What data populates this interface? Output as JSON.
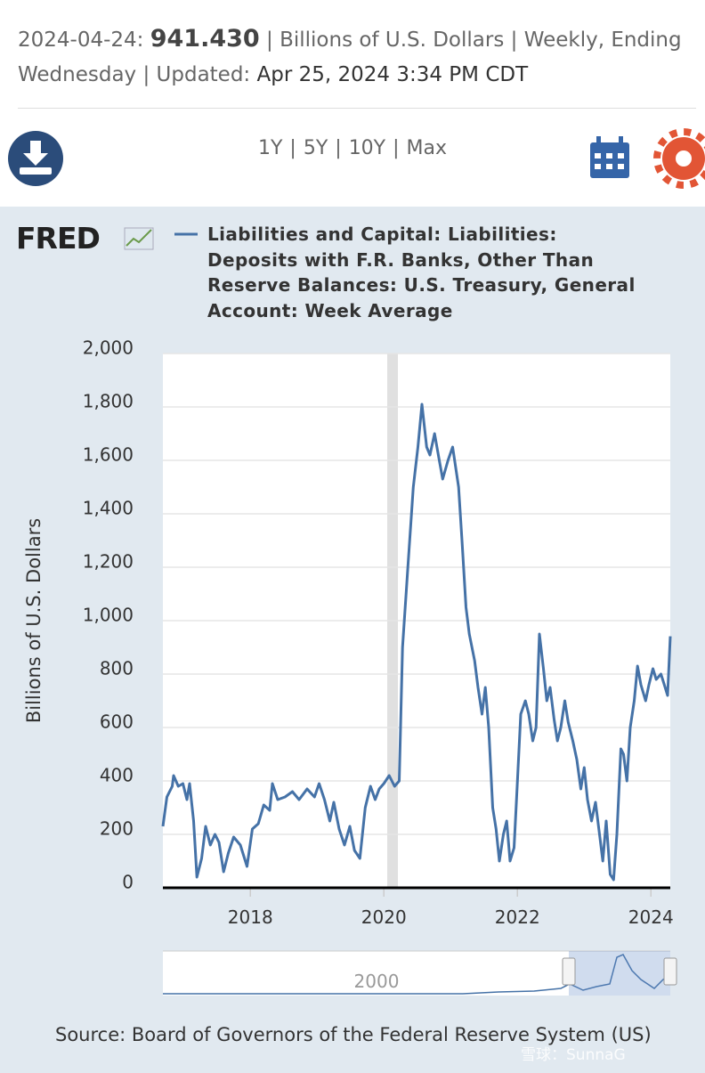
{
  "header": {
    "date": "2024-04-24:",
    "value": "941.430",
    "meta": "| Billions of U.S. Dollars | Weekly, Ending Wednesday | Updated:",
    "updated": "Apr 25, 2024 3:34 PM CDT"
  },
  "ranges": [
    "1Y",
    "5Y",
    "10Y",
    "Max"
  ],
  "logo": "FRED",
  "source": "Source: Board of Governors of the Federal Reserve System (US)",
  "navigator_label": "2000",
  "watermark": "雪球：SunnaG",
  "chart_data": {
    "type": "line",
    "ylabel": "Billions of U.S. Dollars",
    "xlim": [
      2016.69,
      2024.29
    ],
    "xticks": [
      2018,
      2020,
      2022,
      2024
    ],
    "ylim": [
      0,
      2000
    ],
    "yticks": [
      0,
      200,
      400,
      600,
      800,
      {
        "value": 1000,
        "label": "1,000"
      },
      {
        "value": 1200,
        "label": "1,200"
      },
      {
        "value": 1400,
        "label": "1,400"
      },
      {
        "value": 1600,
        "label": "1,600"
      },
      {
        "value": 1800,
        "label": "1,800"
      },
      {
        "value": 2000,
        "label": "2,000"
      }
    ],
    "grid": true,
    "recessions": [
      [
        2020.05,
        2020.21
      ]
    ],
    "x": [
      2016.69,
      2016.75,
      2016.83,
      2016.85,
      2016.92,
      2016.99,
      2017.05,
      2017.09,
      2017.15,
      2017.2,
      2017.27,
      2017.33,
      2017.4,
      2017.47,
      2017.53,
      2017.6,
      2017.67,
      2017.75,
      2017.85,
      2017.95,
      2018.03,
      2018.12,
      2018.2,
      2018.29,
      2018.33,
      2018.41,
      2018.52,
      2018.63,
      2018.73,
      2018.85,
      2018.96,
      2019.03,
      2019.11,
      2019.19,
      2019.25,
      2019.33,
      2019.41,
      2019.49,
      2019.56,
      2019.64,
      2019.72,
      2019.8,
      2019.87,
      2019.93,
      2020.0,
      2020.08,
      2020.16,
      2020.23,
      2020.28,
      2020.36,
      2020.44,
      2020.51,
      2020.57,
      2020.64,
      2020.69,
      2020.76,
      2020.83,
      2020.88,
      2020.96,
      2021.03,
      2021.12,
      2021.17,
      2021.23,
      2021.28,
      2021.36,
      2021.41,
      2021.47,
      2021.52,
      2021.57,
      2021.63,
      2021.68,
      2021.73,
      2021.79,
      2021.84,
      2021.89,
      2021.95,
      2022.0,
      2022.05,
      2022.12,
      2022.17,
      2022.23,
      2022.28,
      2022.33,
      2022.39,
      2022.44,
      2022.49,
      2022.55,
      2022.6,
      2022.65,
      2022.71,
      2022.76,
      2022.83,
      2022.89,
      2022.95,
      2023.0,
      2023.05,
      2023.11,
      2023.17,
      2023.23,
      2023.28,
      2023.33,
      2023.39,
      2023.44,
      2023.49,
      2023.55,
      2023.59,
      2023.64,
      2023.69,
      2023.75,
      2023.8,
      2023.85,
      2023.92,
      2023.97,
      2024.03,
      2024.08,
      2024.15,
      2024.2,
      2024.25,
      2024.29
    ],
    "series": [
      {
        "name": "Liabilities and Capital: Liabilities: Deposits with F.R. Banks, Other Than Reserve Balances: U.S. Treasury, General Account: Week Average",
        "color": "#4572a7",
        "values": [
          230,
          340,
          380,
          420,
          380,
          390,
          330,
          390,
          250,
          40,
          110,
          230,
          160,
          200,
          170,
          60,
          130,
          190,
          160,
          80,
          220,
          240,
          310,
          290,
          390,
          330,
          340,
          360,
          330,
          370,
          340,
          390,
          330,
          250,
          320,
          220,
          160,
          230,
          140,
          110,
          300,
          380,
          330,
          370,
          390,
          420,
          380,
          400,
          900,
          1200,
          1500,
          1650,
          1810,
          1650,
          1620,
          1700,
          1600,
          1530,
          1600,
          1650,
          1500,
          1300,
          1050,
          950,
          850,
          750,
          650,
          750,
          600,
          300,
          220,
          100,
          200,
          250,
          100,
          150,
          400,
          650,
          700,
          650,
          550,
          600,
          950,
          820,
          700,
          750,
          630,
          550,
          600,
          700,
          620,
          550,
          480,
          370,
          450,
          330,
          250,
          320,
          200,
          100,
          250,
          50,
          30,
          200,
          520,
          500,
          400,
          600,
          700,
          830,
          760,
          700,
          760,
          820,
          780,
          800,
          760,
          720,
          941.43
        ]
      }
    ]
  }
}
